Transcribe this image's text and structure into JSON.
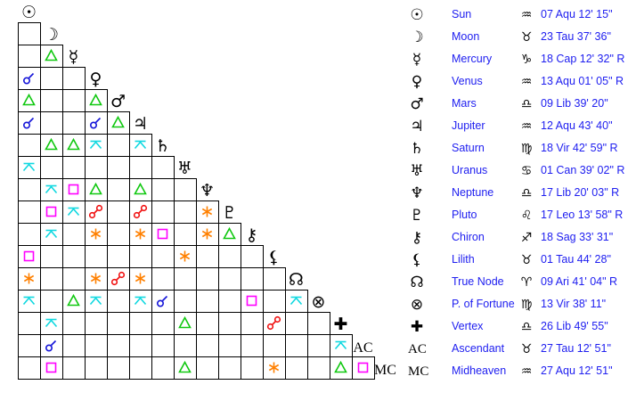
{
  "bodies": [
    {
      "name": "Sun",
      "glyph": "☉",
      "icon": "sun-icon",
      "sign": "♒",
      "sign_icon": "aquarius-icon",
      "position": "07 Aqu 12' 15\""
    },
    {
      "name": "Moon",
      "glyph": "☽",
      "icon": "moon-icon",
      "sign": "♉",
      "sign_icon": "taurus-icon",
      "position": "23 Tau 37' 36\""
    },
    {
      "name": "Mercury",
      "glyph": "☿",
      "icon": "mercury-icon",
      "sign": "♑",
      "sign_icon": "capricorn-icon",
      "position": "18 Cap 12' 32\" R"
    },
    {
      "name": "Venus",
      "glyph": "♀",
      "icon": "venus-icon",
      "sign": "♒",
      "sign_icon": "aquarius-icon",
      "position": "13 Aqu 01' 05\" R"
    },
    {
      "name": "Mars",
      "glyph": "♂",
      "icon": "mars-icon",
      "sign": "♎",
      "sign_icon": "libra-icon",
      "position": "09 Lib 39' 20\""
    },
    {
      "name": "Jupiter",
      "glyph": "♃",
      "icon": "jupiter-icon",
      "sign": "♒",
      "sign_icon": "aquarius-icon",
      "position": "12 Aqu 43' 40\""
    },
    {
      "name": "Saturn",
      "glyph": "♄",
      "icon": "saturn-icon",
      "sign": "♍",
      "sign_icon": "virgo-icon",
      "position": "18 Vir 42' 59\" R"
    },
    {
      "name": "Uranus",
      "glyph": "♅",
      "icon": "uranus-icon",
      "sign": "♋",
      "sign_icon": "cancer-icon",
      "position": "01 Can 39' 02\" R"
    },
    {
      "name": "Neptune",
      "glyph": "♆",
      "icon": "neptune-icon",
      "sign": "♎",
      "sign_icon": "libra-icon",
      "position": "17 Lib 20' 03\" R"
    },
    {
      "name": "Pluto",
      "glyph": "♇",
      "icon": "pluto-icon",
      "sign": "♌",
      "sign_icon": "leo-icon",
      "position": "17 Leo 13' 58\" R"
    },
    {
      "name": "Chiron",
      "glyph": "⚷",
      "icon": "chiron-icon",
      "sign": "♐",
      "sign_icon": "sagittarius-icon",
      "position": "18 Sag 33' 31\""
    },
    {
      "name": "Lilith",
      "glyph": "⚸",
      "icon": "lilith-icon",
      "sign": "♉",
      "sign_icon": "taurus-icon",
      "position": "01 Tau 44' 28\""
    },
    {
      "name": "True Node",
      "glyph": "☊",
      "icon": "north-node-icon",
      "sign": "♈",
      "sign_icon": "aries-icon",
      "position": "09 Ari 41' 04\" R"
    },
    {
      "name": "P. of Fortune",
      "glyph": "⊗",
      "icon": "part-of-fortune-icon",
      "sign": "♍",
      "sign_icon": "virgo-icon",
      "position": "13 Vir 38' 11\""
    },
    {
      "name": "Vertex",
      "glyph": "✚",
      "icon": "vertex-icon",
      "sign": "♎",
      "sign_icon": "libra-icon",
      "position": "26 Lib 49' 55\""
    },
    {
      "name": "Ascendant",
      "glyph": "AC",
      "icon": "ascendant-icon",
      "sign": "♉",
      "sign_icon": "taurus-icon",
      "position": "27 Tau 12' 51\""
    },
    {
      "name": "Midheaven",
      "glyph": "MC",
      "icon": "midheaven-icon",
      "sign": "♒",
      "sign_icon": "aquarius-icon",
      "position": "27 Aqu 12' 51\""
    }
  ],
  "aspect_colors": {
    "conjunction": "#1414d8",
    "trine": "#10c810",
    "quincunx": "#10d8e0",
    "square": "#ff00ff",
    "sextile": "#ff8000",
    "opposition": "#f01010"
  },
  "aspects": [
    [
      2,
      1,
      "trine"
    ],
    [
      3,
      0,
      "conjunction"
    ],
    [
      4,
      0,
      "trine"
    ],
    [
      4,
      3,
      "trine"
    ],
    [
      5,
      0,
      "conjunction"
    ],
    [
      5,
      3,
      "conjunction"
    ],
    [
      5,
      4,
      "trine"
    ],
    [
      6,
      1,
      "trine"
    ],
    [
      6,
      2,
      "trine"
    ],
    [
      6,
      3,
      "quincunx"
    ],
    [
      6,
      5,
      "quincunx"
    ],
    [
      7,
      0,
      "quincunx"
    ],
    [
      8,
      1,
      "quincunx"
    ],
    [
      8,
      2,
      "square"
    ],
    [
      8,
      3,
      "trine"
    ],
    [
      8,
      5,
      "trine"
    ],
    [
      9,
      1,
      "square"
    ],
    [
      9,
      2,
      "quincunx"
    ],
    [
      9,
      3,
      "opposition"
    ],
    [
      9,
      5,
      "opposition"
    ],
    [
      9,
      8,
      "sextile"
    ],
    [
      10,
      1,
      "quincunx"
    ],
    [
      10,
      3,
      "sextile"
    ],
    [
      10,
      5,
      "sextile"
    ],
    [
      10,
      6,
      "square"
    ],
    [
      10,
      8,
      "sextile"
    ],
    [
      10,
      9,
      "trine"
    ],
    [
      11,
      0,
      "square"
    ],
    [
      11,
      7,
      "sextile"
    ],
    [
      12,
      0,
      "sextile"
    ],
    [
      12,
      3,
      "sextile"
    ],
    [
      12,
      4,
      "opposition"
    ],
    [
      12,
      5,
      "sextile"
    ],
    [
      13,
      0,
      "quincunx"
    ],
    [
      13,
      2,
      "trine"
    ],
    [
      13,
      3,
      "quincunx"
    ],
    [
      13,
      5,
      "quincunx"
    ],
    [
      13,
      6,
      "conjunction"
    ],
    [
      13,
      10,
      "square"
    ],
    [
      13,
      12,
      "quincunx"
    ],
    [
      14,
      1,
      "quincunx"
    ],
    [
      14,
      7,
      "trine"
    ],
    [
      14,
      11,
      "opposition"
    ],
    [
      15,
      1,
      "conjunction"
    ],
    [
      15,
      14,
      "quincunx"
    ],
    [
      16,
      1,
      "square"
    ],
    [
      16,
      7,
      "trine"
    ],
    [
      16,
      11,
      "sextile"
    ],
    [
      16,
      14,
      "trine"
    ],
    [
      16,
      15,
      "square"
    ]
  ]
}
